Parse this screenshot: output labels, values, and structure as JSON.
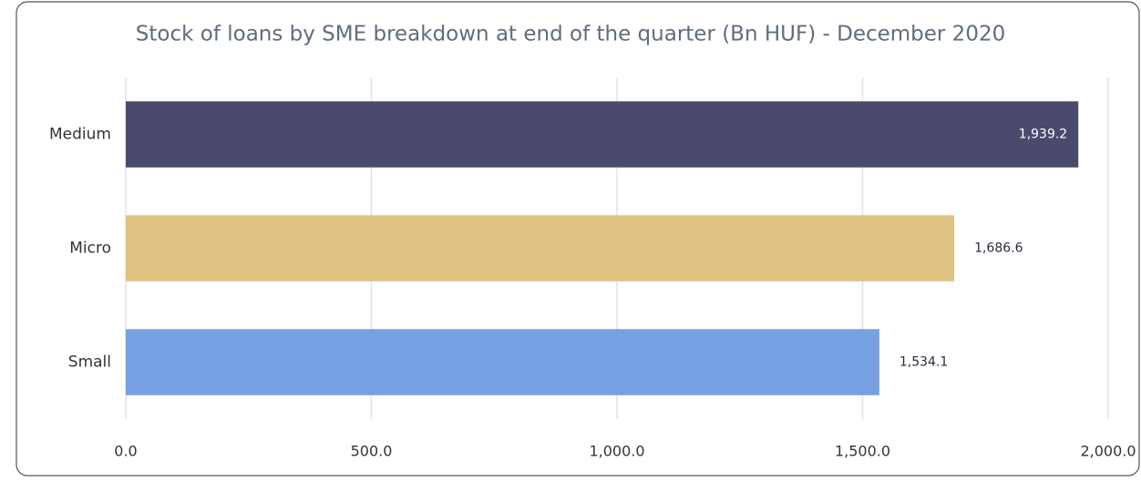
{
  "chart_data": {
    "type": "bar",
    "orientation": "horizontal",
    "title": "Stock of loans by SME breakdown at end of the quarter (Bn HUF) - December 2020",
    "categories": [
      "Medium",
      "Micro",
      "Small"
    ],
    "values": [
      1939.2,
      1686.6,
      1534.1
    ],
    "value_labels": [
      "1,939.2",
      "1,686.6",
      "1,534.1"
    ],
    "colors": [
      "#4a4a6e",
      "#dfc282",
      "#77a0e2"
    ],
    "xlim": [
      0,
      2000
    ],
    "xticks": [
      {
        "value": 0,
        "label": "0.0"
      },
      {
        "value": 500,
        "label": "500.0"
      },
      {
        "value": 1000,
        "label": "1,000.0"
      },
      {
        "value": 1500,
        "label": "1,500.0"
      },
      {
        "value": 2000,
        "label": "2,000.0"
      }
    ],
    "grid": true
  }
}
